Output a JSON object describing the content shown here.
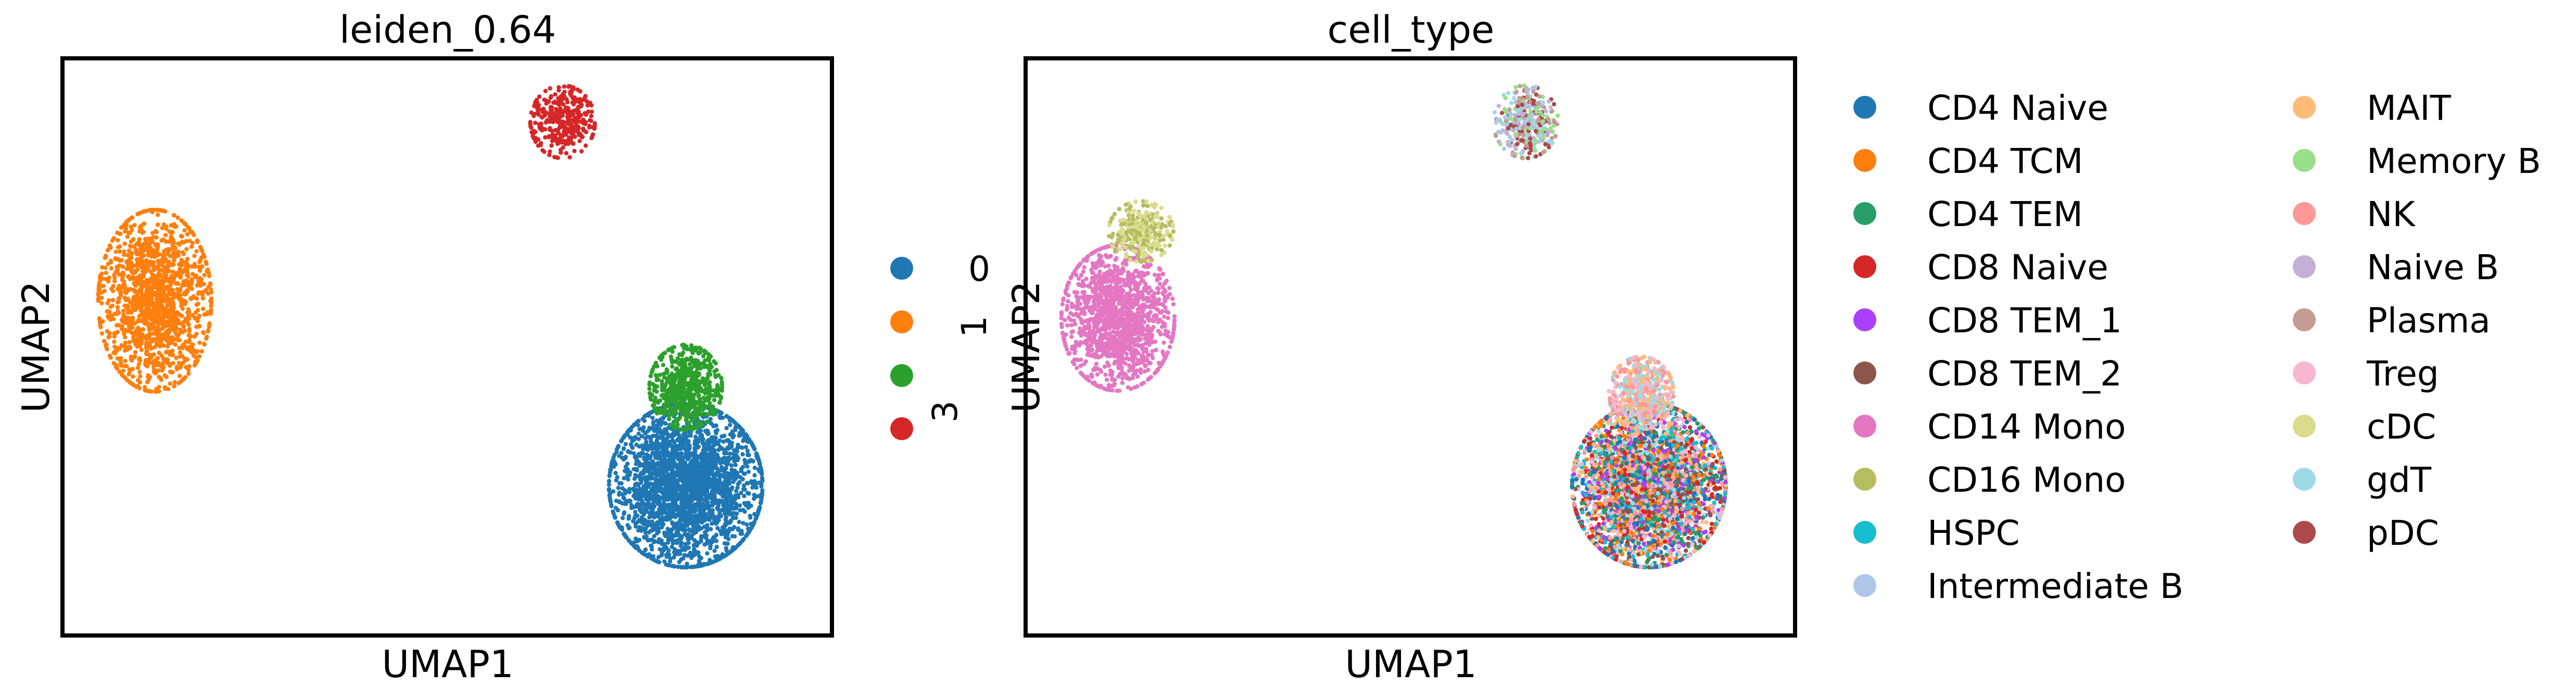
{
  "chart_data": [
    {
      "type": "scatter",
      "title": "leiden_0.64",
      "xlabel": "UMAP1",
      "ylabel": "UMAP2",
      "xlim": [
        0,
        100
      ],
      "ylim": [
        0,
        100
      ],
      "legend_position": "right",
      "series": [
        {
          "name": "0",
          "color": "#1f77b4",
          "center": [
            81,
            26
          ],
          "spread": [
            9.5,
            13.5
          ],
          "n": 2600
        },
        {
          "name": "1",
          "color": "#ff7f0e",
          "center": [
            12,
            58
          ],
          "spread": [
            7,
            15
          ],
          "n": 1500
        },
        {
          "name": "3",
          "color": "#2ca02c",
          "center": [
            81,
            43
          ],
          "spread": [
            4.5,
            7
          ],
          "n": 600
        },
        {
          "name": "",
          "color": "#d62728",
          "center": [
            65,
            89
          ],
          "spread": [
            4,
            6
          ],
          "n": 350
        }
      ],
      "legend_labels": [
        "0",
        "1",
        "3"
      ]
    },
    {
      "type": "scatter",
      "title": "cell_type",
      "xlabel": "UMAP1",
      "ylabel": "UMAP2",
      "xlim": [
        0,
        100
      ],
      "ylim": [
        0,
        100
      ],
      "legend_position": "right",
      "series": [
        {
          "name": "CD4 Naive",
          "color": "#1f77b4"
        },
        {
          "name": "CD4 TCM",
          "color": "#ff7f0e"
        },
        {
          "name": "CD4 TEM",
          "color": "#279e68"
        },
        {
          "name": "CD8 Naive",
          "color": "#d62728"
        },
        {
          "name": "CD8 TEM_1",
          "color": "#aa40fc"
        },
        {
          "name": "CD8 TEM_2",
          "color": "#8c564b"
        },
        {
          "name": "CD14 Mono",
          "color": "#e377c2"
        },
        {
          "name": "CD16 Mono",
          "color": "#b5bd61"
        },
        {
          "name": "HSPC",
          "color": "#17becf"
        },
        {
          "name": "Intermediate B",
          "color": "#aec7e8"
        },
        {
          "name": "MAIT",
          "color": "#ffbb78"
        },
        {
          "name": "Memory B",
          "color": "#98df8a"
        },
        {
          "name": "NK",
          "color": "#ff9896"
        },
        {
          "name": "Naive B",
          "color": "#c5b0d5"
        },
        {
          "name": "Plasma",
          "color": "#c49c94"
        },
        {
          "name": "Treg",
          "color": "#f7b6d2"
        },
        {
          "name": "cDC",
          "color": "#dbdb8d"
        },
        {
          "name": "gdT",
          "color": "#9edae5"
        },
        {
          "name": "pDC",
          "color": "#ad494a"
        }
      ],
      "groups": [
        {
          "center": [
            81,
            26
          ],
          "spread": [
            9.5,
            13.5
          ],
          "n": 3600,
          "mix": [
            "CD4 Naive",
            "CD4 TCM",
            "CD4 TEM",
            "CD8 Naive",
            "CD8 TEM_1",
            "CD8 TEM_2",
            "MAIT",
            "NK",
            "Treg",
            "gdT",
            "HSPC"
          ]
        },
        {
          "center": [
            80,
            42
          ],
          "spread": [
            4,
            6
          ],
          "n": 500,
          "mix": [
            "NK",
            "Treg",
            "MAIT",
            "gdT"
          ]
        },
        {
          "center": [
            12,
            55
          ],
          "spread": [
            7,
            12
          ],
          "n": 1400,
          "mix": [
            "CD14 Mono"
          ]
        },
        {
          "center": [
            15,
            70
          ],
          "spread": [
            4,
            5
          ],
          "n": 300,
          "mix": [
            "CD16 Mono",
            "cDC"
          ]
        },
        {
          "center": [
            65,
            89
          ],
          "spread": [
            4,
            6
          ],
          "n": 350,
          "mix": [
            "Memory B",
            "Naive B",
            "Intermediate B",
            "gdT",
            "Plasma",
            "pDC"
          ]
        }
      ]
    }
  ]
}
